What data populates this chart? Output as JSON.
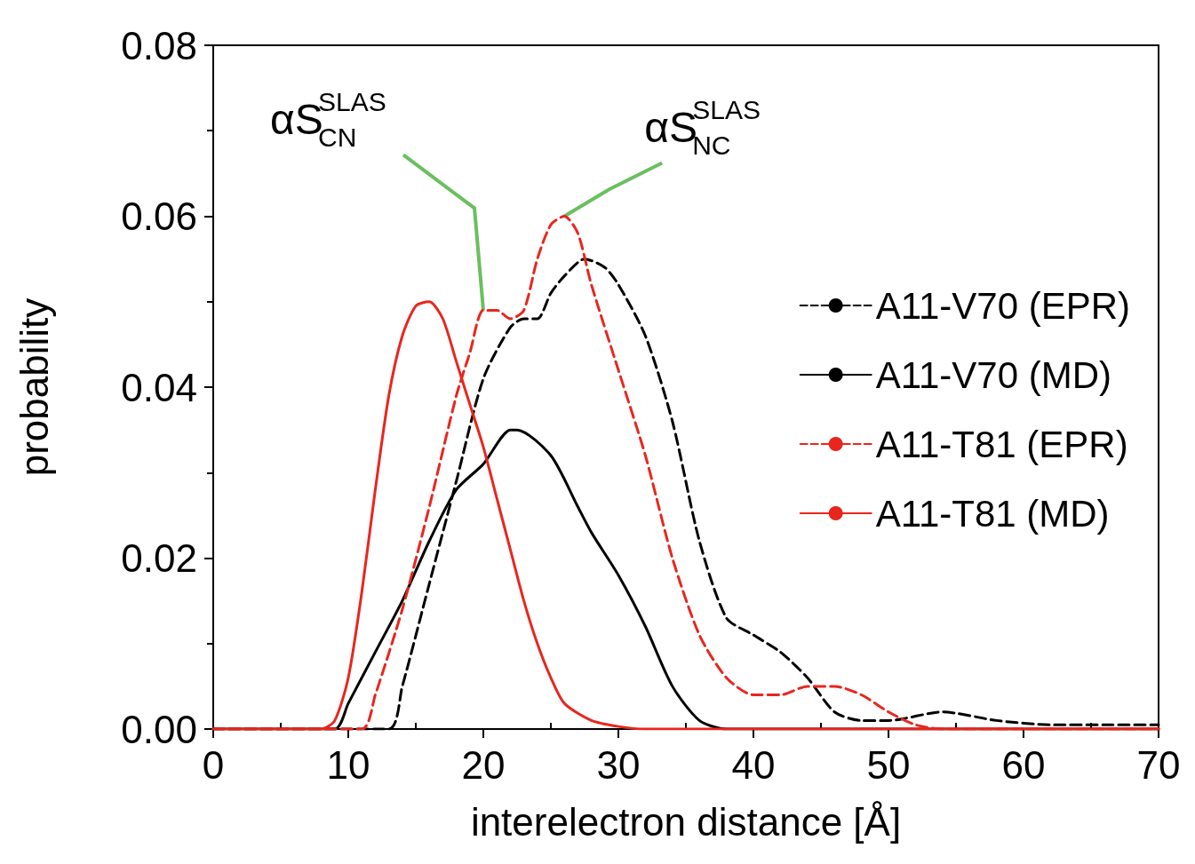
{
  "chart_data": {
    "type": "line",
    "xlabel": "interelectron distance [Å]",
    "ylabel": "probability",
    "xlim": [
      0,
      70
    ],
    "xticks": [
      0,
      10,
      20,
      30,
      40,
      50,
      60,
      70
    ],
    "ylim": [
      0,
      0.08
    ],
    "yticks": [
      {
        "value": 0,
        "label": "0.00"
      },
      0.02,
      0.04,
      0.06,
      0.08
    ],
    "grid": false,
    "legend": "right",
    "marker": "none",
    "annotations": [
      {
        "text": "αS$^{SLAS}$$_{CN}$",
        "x": 20,
        "y": 0.049
      },
      {
        "text": "αS$^{SLAS}$$_{NC}$",
        "x": 26,
        "y": 0.06
      }
    ],
    "series": [
      {
        "name": "A11-V70 (EPR)",
        "color": "#000000",
        "line_style": "dashed",
        "x": [
          0,
          13,
          14,
          16,
          18,
          20,
          22,
          23,
          24,
          25,
          26,
          27.5,
          29,
          30,
          32,
          34,
          36,
          38,
          40,
          42,
          44,
          46,
          48,
          50,
          54,
          58,
          62,
          66,
          70
        ],
        "values": [
          0,
          0,
          0.005,
          0.017,
          0.029,
          0.041,
          0.047,
          0.048,
          0.048,
          0.051,
          0.053,
          0.055,
          0.054,
          0.052,
          0.046,
          0.036,
          0.022,
          0.013,
          0.011,
          0.009,
          0.006,
          0.002,
          0.001,
          0.001,
          0.002,
          0.001,
          0.0005,
          0.0005,
          0.0005
        ]
      },
      {
        "name": "A11-V70 (MD)",
        "color": "#000000",
        "line_style": "solid",
        "x": [
          0,
          9,
          10,
          12,
          14,
          16,
          18,
          20,
          22,
          22.5,
          25,
          27,
          28,
          30,
          32,
          34,
          36,
          38,
          70
        ],
        "values": [
          0,
          0,
          0.003,
          0.009,
          0.015,
          0.022,
          0.028,
          0.031,
          0.035,
          0.035,
          0.032,
          0.026,
          0.023,
          0.018,
          0.012,
          0.005,
          0.001,
          0,
          0
        ]
      },
      {
        "name": "A11-T81 (EPR)",
        "color": "#e8261e",
        "line_style": "dashed",
        "x": [
          0,
          11,
          12,
          14,
          16,
          18,
          19,
          20,
          21,
          22,
          23,
          24,
          25,
          26,
          27,
          28,
          30,
          32,
          34,
          36,
          38,
          40,
          42,
          44,
          46,
          48,
          50,
          52,
          54,
          70
        ],
        "values": [
          0,
          0,
          0.004,
          0.014,
          0.026,
          0.039,
          0.044,
          0.049,
          0.049,
          0.048,
          0.049,
          0.055,
          0.059,
          0.06,
          0.058,
          0.052,
          0.042,
          0.032,
          0.02,
          0.011,
          0.006,
          0.004,
          0.004,
          0.005,
          0.005,
          0.004,
          0.002,
          0.0005,
          0,
          0
        ]
      },
      {
        "name": "A11-T81 (MD)",
        "color": "#e8261e",
        "line_style": "solid",
        "x": [
          0,
          8,
          9,
          10,
          11,
          12,
          13,
          14,
          15,
          16,
          17,
          18,
          19,
          20,
          21,
          22,
          23,
          24,
          25,
          26,
          28,
          30,
          32,
          70
        ],
        "values": [
          0,
          0,
          0.001,
          0.006,
          0.016,
          0.028,
          0.039,
          0.046,
          0.0495,
          0.05,
          0.048,
          0.043,
          0.038,
          0.033,
          0.027,
          0.021,
          0.015,
          0.01,
          0.006,
          0.003,
          0.001,
          0.0003,
          0,
          0
        ]
      }
    ]
  }
}
